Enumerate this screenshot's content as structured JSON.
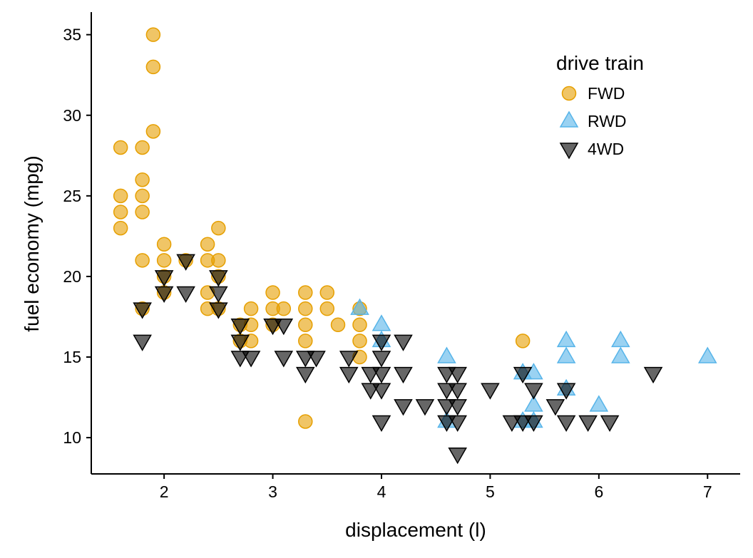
{
  "chart_data": {
    "type": "scatter",
    "title": "",
    "xlabel": "displacement (l)",
    "ylabel": "fuel economy (mpg)",
    "xlim": [
      1.33,
      7.3
    ],
    "ylim": [
      7.75,
      36.4
    ],
    "xticks": [
      2,
      3,
      4,
      5,
      6,
      7
    ],
    "yticks": [
      10,
      15,
      20,
      25,
      30,
      35
    ],
    "grid": false,
    "legend": {
      "title": "drive train",
      "position": "top-right"
    },
    "series": [
      {
        "name": "FWD",
        "marker": "circle",
        "color": "#E69F00",
        "points": [
          [
            1.6,
            28
          ],
          [
            1.6,
            25
          ],
          [
            1.6,
            24
          ],
          [
            1.6,
            23
          ],
          [
            1.8,
            28
          ],
          [
            1.8,
            26
          ],
          [
            1.8,
            25
          ],
          [
            1.8,
            24
          ],
          [
            1.8,
            21
          ],
          [
            1.8,
            18
          ],
          [
            1.9,
            35
          ],
          [
            1.9,
            33
          ],
          [
            1.9,
            29
          ],
          [
            2.0,
            22
          ],
          [
            2.0,
            21
          ],
          [
            2.0,
            20
          ],
          [
            2.0,
            19
          ],
          [
            2.2,
            21
          ],
          [
            2.4,
            22
          ],
          [
            2.4,
            21
          ],
          [
            2.4,
            19
          ],
          [
            2.4,
            18
          ],
          [
            2.5,
            23
          ],
          [
            2.5,
            21
          ],
          [
            2.5,
            20
          ],
          [
            2.5,
            18
          ],
          [
            2.7,
            17
          ],
          [
            2.7,
            16
          ],
          [
            2.8,
            18
          ],
          [
            2.8,
            17
          ],
          [
            2.8,
            16
          ],
          [
            3.0,
            19
          ],
          [
            3.0,
            18
          ],
          [
            3.0,
            17
          ],
          [
            3.1,
            18
          ],
          [
            3.3,
            19
          ],
          [
            3.3,
            18
          ],
          [
            3.3,
            17
          ],
          [
            3.3,
            16
          ],
          [
            3.3,
            11
          ],
          [
            3.5,
            19
          ],
          [
            3.5,
            18
          ],
          [
            3.6,
            17
          ],
          [
            3.8,
            18
          ],
          [
            3.8,
            17
          ],
          [
            3.8,
            16
          ],
          [
            3.8,
            15
          ],
          [
            5.3,
            16
          ]
        ]
      },
      {
        "name": "RWD",
        "marker": "triangle-up",
        "color": "#56B4E9",
        "points": [
          [
            3.8,
            18
          ],
          [
            4.0,
            17
          ],
          [
            4.0,
            16
          ],
          [
            4.6,
            15
          ],
          [
            4.6,
            11
          ],
          [
            5.3,
            14
          ],
          [
            5.3,
            11
          ],
          [
            5.4,
            14
          ],
          [
            5.4,
            12
          ],
          [
            5.4,
            11
          ],
          [
            5.7,
            16
          ],
          [
            5.7,
            15
          ],
          [
            5.7,
            13
          ],
          [
            6.0,
            12
          ],
          [
            6.2,
            16
          ],
          [
            6.2,
            15
          ],
          [
            7.0,
            15
          ]
        ]
      },
      {
        "name": "4WD",
        "marker": "triangle-down",
        "color": "#000000",
        "points": [
          [
            1.8,
            18
          ],
          [
            1.8,
            16
          ],
          [
            2.0,
            20
          ],
          [
            2.0,
            19
          ],
          [
            2.2,
            19
          ],
          [
            2.2,
            21
          ],
          [
            2.5,
            20
          ],
          [
            2.5,
            19
          ],
          [
            2.5,
            18
          ],
          [
            2.7,
            17
          ],
          [
            2.7,
            16
          ],
          [
            2.7,
            15
          ],
          [
            2.8,
            15
          ],
          [
            3.0,
            17
          ],
          [
            3.1,
            17
          ],
          [
            3.1,
            15
          ],
          [
            3.3,
            15
          ],
          [
            3.3,
            14
          ],
          [
            3.4,
            15
          ],
          [
            3.7,
            15
          ],
          [
            3.7,
            14
          ],
          [
            3.9,
            14
          ],
          [
            3.9,
            13
          ],
          [
            4.0,
            16
          ],
          [
            4.0,
            15
          ],
          [
            4.0,
            14
          ],
          [
            4.0,
            13
          ],
          [
            4.0,
            11
          ],
          [
            4.2,
            14
          ],
          [
            4.2,
            12
          ],
          [
            4.2,
            16
          ],
          [
            4.4,
            12
          ],
          [
            4.6,
            11
          ],
          [
            4.6,
            14
          ],
          [
            4.6,
            13
          ],
          [
            4.6,
            12
          ],
          [
            4.7,
            14
          ],
          [
            4.7,
            13
          ],
          [
            4.7,
            12
          ],
          [
            4.7,
            11
          ],
          [
            4.7,
            9
          ],
          [
            5.0,
            13
          ],
          [
            5.2,
            11
          ],
          [
            5.3,
            11
          ],
          [
            5.3,
            14
          ],
          [
            5.4,
            13
          ],
          [
            5.4,
            11
          ],
          [
            5.6,
            12
          ],
          [
            5.7,
            13
          ],
          [
            5.7,
            11
          ],
          [
            5.9,
            11
          ],
          [
            6.1,
            11
          ],
          [
            6.5,
            14
          ]
        ]
      }
    ]
  }
}
